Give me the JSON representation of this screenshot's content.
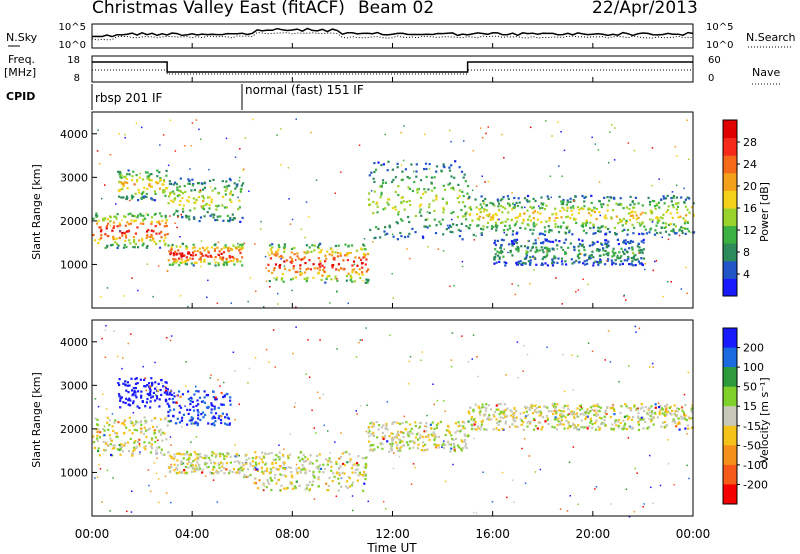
{
  "header": {
    "title": "Christmas Valley East (fitACF)",
    "beam": "Beam 02",
    "date": "22/Apr/2013"
  },
  "panels": {
    "noise": {
      "left_label": "N.Sky",
      "right_label": "N.Search",
      "left_ticks": [
        "10^5",
        "10^0"
      ],
      "right_ticks": [
        "10^5",
        "10^0"
      ]
    },
    "freq": {
      "left_label_1": "Freq.",
      "left_label_2": "[MHz]",
      "left_ticks": [
        "18",
        "8"
      ],
      "right_label": "Nave",
      "right_ticks": [
        "60",
        "0"
      ]
    },
    "cpid": {
      "label": "CPID",
      "modes": [
        {
          "label": "rbsp 201 IF",
          "start_hour": 0
        },
        {
          "label": "normal (fast) 151 IF",
          "start_hour": 6
        }
      ]
    }
  },
  "chart_data": [
    {
      "type": "heatmap",
      "name": "power",
      "ylabel": "Slant Range [km]",
      "yticks": [
        1000,
        2000,
        3000,
        4000
      ],
      "ylim": [
        0,
        4500
      ],
      "xlim": [
        0,
        24
      ],
      "colorbar": {
        "label": "Power [dB]",
        "ticks": [
          "4",
          "8",
          "12",
          "16",
          "20",
          "24",
          "28"
        ],
        "colors": [
          "#1a1aff",
          "#2255c8",
          "#2d8a5a",
          "#3cb043",
          "#99d22a",
          "#f5d21a",
          "#f5a01a",
          "#f56a1a",
          "#f52a1a",
          "#e00000"
        ]
      },
      "features": [
        {
          "from": 0,
          "to": 3,
          "range": [
            1400,
            2200
          ],
          "level": 0.85
        },
        {
          "from": 1,
          "to": 3,
          "range": [
            2500,
            3200
          ],
          "level": 0.6
        },
        {
          "from": 3,
          "to": 6,
          "range": [
            1000,
            1500
          ],
          "level": 0.9
        },
        {
          "from": 3,
          "to": 6,
          "range": [
            2000,
            3000
          ],
          "level": 0.5
        },
        {
          "from": 7,
          "to": 11,
          "range": [
            600,
            1500
          ],
          "level": 0.85
        },
        {
          "from": 11,
          "to": 15,
          "range": [
            1600,
            3400
          ],
          "level": 0.45
        },
        {
          "from": 15,
          "to": 24,
          "range": [
            1700,
            2600
          ],
          "level": 0.55
        },
        {
          "from": 16,
          "to": 22,
          "range": [
            1000,
            1600
          ],
          "level": 0.3
        }
      ]
    },
    {
      "type": "heatmap",
      "name": "velocity",
      "ylabel": "Slant Range [km]",
      "yticks": [
        1000,
        2000,
        3000,
        4000
      ],
      "ylim": [
        0,
        4500
      ],
      "xlim": [
        0,
        24
      ],
      "colorbar": {
        "label": "Velocity [m s⁻¹]",
        "ticks": [
          "200",
          "100",
          "50",
          "15",
          "-15",
          "-50",
          "-100",
          "-200"
        ],
        "colors": [
          "#1a1aff",
          "#1a6be0",
          "#2d9a3c",
          "#7fd02a",
          "#c8c8b8",
          "#f5c21a",
          "#f5901a",
          "#f55a1a",
          "#f50000"
        ]
      },
      "features": [
        {
          "from": 0,
          "to": 3,
          "range": [
            1400,
            2300
          ],
          "v": 0
        },
        {
          "from": 1,
          "to": 3,
          "range": [
            2500,
            3200
          ],
          "v": 180
        },
        {
          "from": 3,
          "to": 5.5,
          "range": [
            2100,
            2900
          ],
          "v": 150
        },
        {
          "from": 3,
          "to": 6,
          "range": [
            1000,
            1500
          ],
          "v": 0
        },
        {
          "from": 6,
          "to": 11,
          "range": [
            600,
            1500
          ],
          "v": 0
        },
        {
          "from": 11,
          "to": 15,
          "range": [
            1500,
            2200
          ],
          "v": 0
        },
        {
          "from": 15,
          "to": 24,
          "range": [
            2000,
            2600
          ],
          "v": 0
        }
      ]
    }
  ],
  "xaxis": {
    "label": "Time UT",
    "ticks": [
      "00:00",
      "04:00",
      "08:00",
      "12:00",
      "16:00",
      "20:00",
      "00:00"
    ]
  }
}
